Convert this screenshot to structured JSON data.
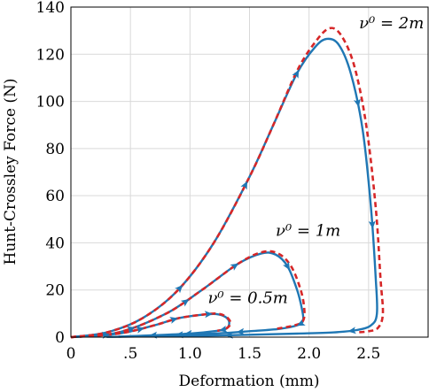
{
  "chart_data": {
    "type": "line",
    "title": "",
    "xlabel": "Deformation (mm)",
    "ylabel": "Hunt-Crossley Force (N)",
    "xlim": [
      0,
      3
    ],
    "ylim": [
      0,
      140
    ],
    "xticks": [
      "0",
      ".5",
      "1.0",
      "1.5",
      "2.0",
      "2.5"
    ],
    "xtick_values": [
      0,
      0.5,
      1.0,
      1.5,
      2.0,
      2.5
    ],
    "yticks": [
      "0",
      "20",
      "40",
      "60",
      "80",
      "100",
      "120",
      "140"
    ],
    "ytick_values": [
      0,
      20,
      40,
      60,
      80,
      100,
      120,
      140
    ],
    "grid": true,
    "colors": {
      "solid": "#1f77b4",
      "dashed": "#d62728"
    },
    "annotations": [
      {
        "text": "ν⁰ = 2m",
        "x": 2.42,
        "y": 131
      },
      {
        "text": "ν⁰ = 1m",
        "x": 1.72,
        "y": 43
      },
      {
        "text": "ν⁰ = 0.5m",
        "x": 1.15,
        "y": 14.5
      }
    ],
    "series": [
      {
        "loop": "2m",
        "style": "solid",
        "x": [
          0,
          0.3,
          0.6,
          0.9,
          1.2,
          1.5,
          1.7,
          1.9,
          2.05,
          2.15,
          2.25,
          2.35,
          2.45,
          2.52,
          2.56,
          2.57,
          2.52,
          2.4,
          2.2,
          1.9,
          1.5,
          1.0,
          0.6,
          0.3
        ],
        "y": [
          0,
          2,
          8,
          20,
          40,
          68,
          90,
          112,
          123,
          126.5,
          124,
          112,
          88,
          55,
          25,
          10,
          5,
          3,
          2,
          1.5,
          1,
          0.5,
          0.3,
          0.1
        ]
      },
      {
        "loop": "2m",
        "style": "dashed",
        "x": [
          0,
          0.3,
          0.6,
          0.9,
          1.2,
          1.5,
          1.7,
          1.9,
          2.05,
          2.17,
          2.27,
          2.38,
          2.48,
          2.56,
          2.6,
          2.62,
          2.58,
          2.5,
          2.4
        ],
        "y": [
          0,
          2,
          8,
          20,
          40,
          68,
          90,
          113,
          125,
          131,
          128,
          115,
          90,
          55,
          25,
          10,
          4,
          2.5,
          2
        ]
      },
      {
        "loop": "1m",
        "style": "solid",
        "x": [
          0,
          0.4,
          0.8,
          1.1,
          1.4,
          1.6,
          1.72,
          1.82,
          1.9,
          1.94,
          1.95,
          1.9,
          1.75,
          1.5,
          1.2,
          0.8,
          0.4
        ],
        "y": [
          0,
          2,
          10,
          20,
          31,
          35.5,
          35,
          30,
          20,
          12,
          7,
          5,
          3.5,
          2.5,
          1.5,
          0.8,
          0.2
        ]
      },
      {
        "loop": "1m",
        "style": "dashed",
        "x": [
          0,
          0.4,
          0.8,
          1.1,
          1.4,
          1.6,
          1.74,
          1.85,
          1.93,
          1.96,
          1.95,
          1.88,
          1.72
        ],
        "y": [
          0,
          2,
          10,
          20,
          31,
          36,
          35.5,
          30,
          20,
          12,
          7,
          5,
          3.5
        ]
      },
      {
        "loop": "0.5m",
        "style": "solid",
        "x": [
          0,
          0.4,
          0.7,
          0.9,
          1.1,
          1.22,
          1.3,
          1.33,
          1.3,
          1.2,
          1.0,
          0.7,
          0.4
        ],
        "y": [
          0,
          1.5,
          5,
          8,
          9.5,
          9.8,
          8.5,
          6,
          3.5,
          2.5,
          1.5,
          0.8,
          0.2
        ]
      },
      {
        "loop": "0.5m",
        "style": "dashed",
        "x": [
          0,
          0.4,
          0.7,
          0.9,
          1.1,
          1.22,
          1.3,
          1.34,
          1.3,
          1.2
        ],
        "y": [
          0,
          1.5,
          5,
          8,
          9.5,
          10,
          8.8,
          6,
          3.5,
          2.5
        ]
      }
    ]
  }
}
